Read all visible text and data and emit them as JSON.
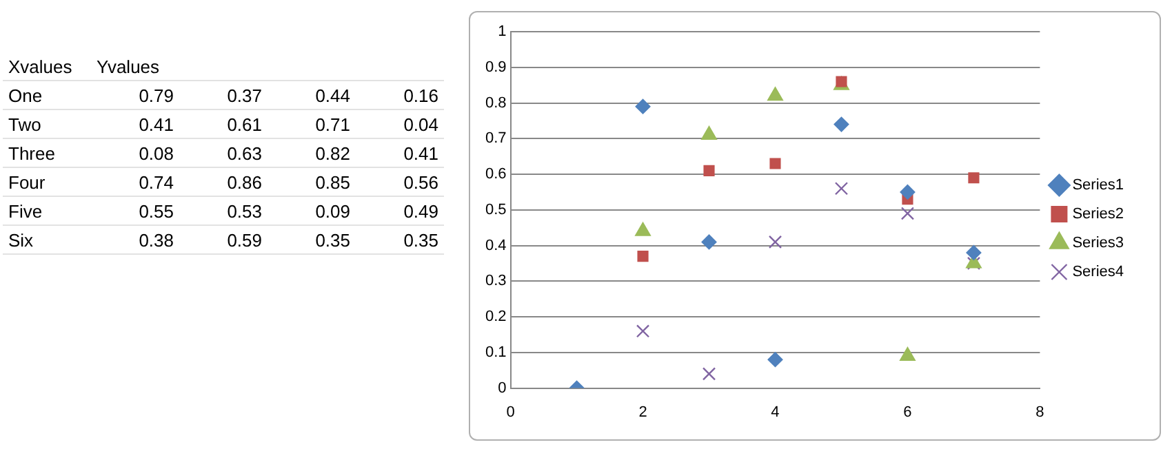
{
  "chart_data": [
    {
      "type": "other",
      "annotations": [
        "Xvalues",
        "Yvalues",
        "One",
        "0.79",
        "0.37",
        "0.44",
        "0.16",
        "Two",
        "0.41",
        "0.61",
        "0.71",
        "0.04",
        "Three",
        "0.08",
        "0.63",
        "0.82",
        "0.41",
        "Four",
        "0.74",
        "0.86",
        "0.85",
        "0.56",
        "Five",
        "0.55",
        "0.53",
        "0.09",
        "0.49",
        "Six",
        "0.38",
        "0.59",
        "0.35",
        "0.35"
      ]
    },
    {
      "type": "scatter",
      "xlim": [
        0,
        8
      ],
      "xticks": [
        0,
        2,
        4,
        6,
        8
      ],
      "ylim": [
        0,
        1
      ],
      "yticks": [
        0,
        0.1,
        0.2,
        0.3,
        0.4,
        0.5,
        0.6,
        0.7,
        0.8,
        0.9,
        1
      ],
      "grid": "y",
      "legend": "right",
      "series": [
        {
          "name": "Series1",
          "color": "#4f81bd",
          "marker": "diamond",
          "x": [
            1,
            2,
            3,
            4,
            5,
            6,
            7
          ],
          "values": [
            0,
            0.79,
            0.41,
            0.08,
            0.74,
            0.55,
            0.38
          ]
        },
        {
          "name": "Series2",
          "color": "#c0504d",
          "marker": "square",
          "x": [
            2,
            3,
            4,
            5,
            6,
            7
          ],
          "values": [
            0.37,
            0.61,
            0.63,
            0.86,
            0.53,
            0.59
          ]
        },
        {
          "name": "Series3",
          "color": "#9bbb59",
          "marker": "triangle",
          "x": [
            2,
            3,
            4,
            5,
            6,
            7
          ],
          "values": [
            0.44,
            0.71,
            0.82,
            0.85,
            0.09,
            0.35
          ]
        },
        {
          "name": "Series4",
          "color": "#8064a2",
          "marker": "cross",
          "x": [
            2,
            3,
            4,
            5,
            6,
            7
          ],
          "values": [
            0.16,
            0.04,
            0.41,
            0.56,
            0.49,
            0.35
          ]
        }
      ]
    }
  ]
}
